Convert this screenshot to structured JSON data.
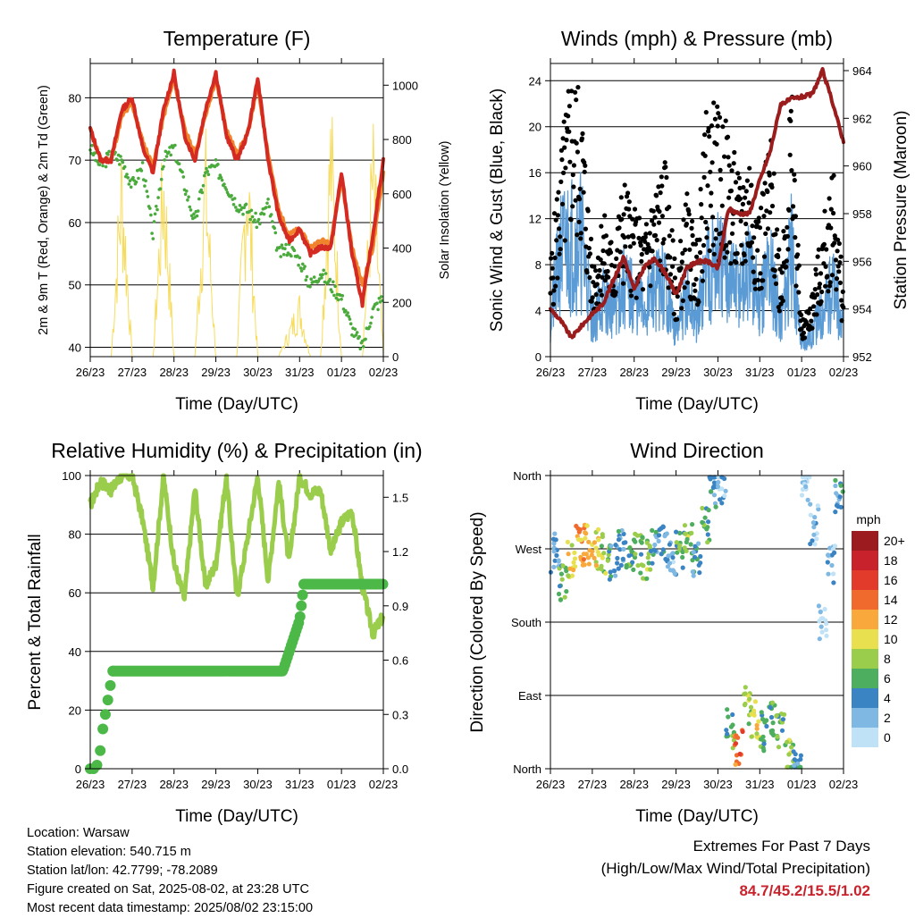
{
  "x_ticks": [
    "26/23",
    "27/23",
    "28/23",
    "29/23",
    "30/23",
    "31/23",
    "01/23",
    "02/23"
  ],
  "xlabel": "Time (Day/UTC)",
  "colors": {
    "red": "#d42a21",
    "orange": "#f0842c",
    "green": "#4aaa3c",
    "yellow": "#f7dc5c",
    "black": "#000000",
    "blue": "#5b9bd5",
    "maroon": "#9b1c1c",
    "rh": "#9acd4c",
    "precip": "#4cb848"
  },
  "chart_data": [
    {
      "type": "line",
      "title": "Temperature (F)",
      "xlabel": "Time (Day/UTC)",
      "ylabel": "2m & 9m T (Red, Orange) & 2m Td (Green)",
      "y2label": "Solar Insolation (Yellow)",
      "ylim": [
        38.5,
        85.5
      ],
      "y_ticks": [
        40,
        50,
        60,
        70,
        80
      ],
      "y2lim": [
        0,
        1080
      ],
      "y2_ticks": [
        0,
        200,
        400,
        600,
        800,
        1000
      ],
      "x": [
        0,
        0.25,
        0.5,
        0.75,
        1,
        1.25,
        1.5,
        1.75,
        2,
        2.25,
        2.5,
        2.75,
        3,
        3.25,
        3.5,
        3.75,
        4,
        4.25,
        4.5,
        4.75,
        5,
        5.25,
        5.5,
        5.75,
        6,
        6.25,
        6.5,
        6.75,
        7
      ],
      "series": [
        {
          "name": "2m T",
          "color": "red",
          "values": [
            75,
            70,
            70,
            78,
            80,
            72,
            68,
            78,
            84,
            74,
            70,
            78,
            84,
            74,
            70,
            74,
            83,
            70,
            61,
            57,
            59,
            55,
            56,
            56,
            68,
            55,
            47,
            58,
            70
          ]
        },
        {
          "name": "9m T",
          "color": "orange",
          "values": [
            75,
            70,
            70,
            77,
            79,
            73,
            69,
            77,
            83,
            75,
            71,
            77,
            83,
            75,
            71,
            74,
            82,
            71,
            62,
            58,
            59,
            56,
            57,
            57,
            67,
            56,
            50,
            56,
            68
          ]
        },
        {
          "name": "2m Td",
          "color": "green",
          "values": [
            72,
            69,
            71,
            70,
            66,
            69,
            58,
            70,
            72,
            66,
            60,
            68,
            69,
            66,
            63,
            62,
            60,
            63,
            55,
            56,
            54,
            50,
            52,
            50,
            48,
            43,
            40,
            46,
            48
          ]
        },
        {
          "name": "Solar Insolation",
          "color": "yellow",
          "axis": "y2",
          "values": [
            0,
            0,
            0,
            880,
            0,
            0,
            0,
            900,
            0,
            0,
            0,
            900,
            0,
            0,
            0,
            950,
            0,
            0,
            0,
            120,
            250,
            0,
            0,
            1050,
            0,
            0,
            0,
            950,
            0
          ]
        }
      ]
    },
    {
      "type": "scatter",
      "title": "Winds (mph) & Pressure (mb)",
      "xlabel": "Time (Day/UTC)",
      "ylabel": "Sonic Wind & Gust (Blue, Black)",
      "y2label": "Station Pressure (Maroon)",
      "ylim": [
        0,
        25.5
      ],
      "y_ticks": [
        0,
        4,
        8,
        12,
        16,
        20,
        24
      ],
      "y2lim": [
        952,
        964.3
      ],
      "y2_ticks": [
        952,
        954,
        956,
        958,
        960,
        962,
        964
      ],
      "x": [
        0,
        0.25,
        0.5,
        0.75,
        1,
        1.25,
        1.5,
        1.75,
        2,
        2.25,
        2.5,
        2.75,
        3,
        3.25,
        3.5,
        3.75,
        4,
        4.25,
        4.5,
        4.75,
        5,
        5.25,
        5.5,
        5.75,
        6,
        6.25,
        6.5,
        6.75,
        7
      ],
      "series": [
        {
          "name": "Gust",
          "color": "black",
          "values": [
            6,
            13,
            18,
            16,
            6,
            9,
            7,
            11,
            9,
            8,
            11,
            12,
            5,
            10,
            7,
            16,
            15,
            14,
            11,
            13,
            9,
            14,
            6,
            17,
            2,
            4,
            8,
            12,
            4
          ]
        },
        {
          "name": "Wind",
          "color": "blue",
          "values": [
            3,
            9,
            10,
            10,
            3,
            5,
            4,
            6,
            5,
            4,
            6,
            6,
            2,
            5,
            3,
            8,
            8,
            7,
            6,
            7,
            5,
            8,
            3,
            9,
            1,
            2,
            4,
            6,
            2
          ]
        },
        {
          "name": "Station Pressure",
          "color": "maroon",
          "axis": "y2",
          "values": [
            954,
            953.5,
            952.8,
            953.3,
            953.8,
            954.2,
            955.2,
            956.2,
            954.8,
            955.8,
            956.1,
            955.5,
            954.6,
            955.7,
            956,
            956,
            955.7,
            958.2,
            958,
            958,
            959.4,
            960.6,
            962.6,
            962.8,
            962.9,
            963,
            964,
            962.6,
            961
          ]
        }
      ]
    },
    {
      "type": "line",
      "title": "Relative Humidity (%) & Precipitation (in)",
      "xlabel": "Time (Day/UTC)",
      "ylabel": "Percent & Total Rainfall",
      "ylim": [
        0,
        100
      ],
      "y_ticks": [
        0,
        20,
        40,
        60,
        80,
        100
      ],
      "y2lim": [
        0,
        1.62
      ],
      "y2_ticks": [
        0.0,
        0.3,
        0.6,
        0.9,
        1.2,
        1.5
      ],
      "x": [
        0,
        0.25,
        0.5,
        0.75,
        1,
        1.25,
        1.5,
        1.75,
        2,
        2.25,
        2.5,
        2.75,
        3,
        3.25,
        3.5,
        3.75,
        4,
        4.25,
        4.5,
        4.75,
        5,
        5.25,
        5.5,
        5.75,
        6,
        6.25,
        6.5,
        6.75,
        7
      ],
      "series": [
        {
          "name": "RH",
          "color": "rh",
          "values": [
            90,
            98,
            95,
            100,
            100,
            85,
            62,
            100,
            70,
            58,
            96,
            62,
            70,
            100,
            58,
            78,
            100,
            64,
            98,
            70,
            100,
            94,
            95,
            74,
            84,
            88,
            62,
            46,
            52
          ]
        },
        {
          "name": "Total Rainfall",
          "color": "precip",
          "axis": "y2",
          "values": [
            0,
            0,
            0.54,
            0.54,
            0.54,
            0.54,
            0.54,
            0.54,
            0.54,
            0.54,
            0.54,
            0.54,
            0.54,
            0.54,
            0.54,
            0.54,
            0.54,
            0.54,
            0.54,
            0.54,
            0.9,
            1.02,
            1.02,
            1.02,
            1.02,
            1.02,
            1.02,
            1.02,
            1.02
          ]
        }
      ]
    },
    {
      "type": "scatter",
      "title": "Wind Direction",
      "xlabel": "Time (Day/UTC)",
      "ylabel": "Direction (Colored By Speed)",
      "y_ticks": [
        "North",
        "East",
        "South",
        "West",
        "North"
      ],
      "ylim": [
        0,
        360
      ],
      "colorbar": {
        "label": "mph",
        "levels": [
          "20+",
          "18",
          "16",
          "14",
          "12",
          "10",
          "8",
          "6",
          "4",
          "2",
          "0"
        ],
        "colors": [
          "#9b1b1e",
          "#c8232c",
          "#e33b2b",
          "#f16a2d",
          "#f9a83b",
          "#e9e04f",
          "#9acd4c",
          "#4cae5e",
          "#3b84c4",
          "#7eb8e3",
          "#c0e2f6"
        ]
      },
      "x": [
        0.1,
        0.3,
        0.5,
        0.7,
        0.9,
        1.1,
        1.3,
        1.5,
        1.7,
        1.9,
        2.1,
        2.3,
        2.5,
        2.7,
        2.9,
        3.1,
        3.3,
        3.5,
        3.7,
        3.9,
        4.1,
        4.3,
        4.5,
        4.7,
        4.9,
        5.1,
        5.3,
        5.5,
        5.7,
        5.9,
        6.1,
        6.3,
        6.5,
        6.7,
        6.9
      ],
      "y": [
        265,
        230,
        260,
        275,
        275,
        270,
        265,
        250,
        270,
        260,
        265,
        255,
        270,
        275,
        260,
        270,
        280,
        255,
        300,
        340,
        350,
        50,
        30,
        75,
        60,
        45,
        60,
        50,
        20,
        10,
        355,
        300,
        180,
        250,
        330
      ],
      "speed": [
        3,
        6,
        10,
        12,
        12,
        10,
        8,
        4,
        4,
        6,
        6,
        8,
        4,
        4,
        2,
        6,
        8,
        4,
        6,
        4,
        2,
        6,
        14,
        8,
        10,
        6,
        6,
        6,
        8,
        4,
        1,
        2,
        1,
        2,
        4
      ]
    }
  ],
  "info": {
    "location": "Location: Warsaw",
    "elevation": "Station elevation: 540.715 m",
    "latlon": "Station lat/lon: 42.7799; -78.2089",
    "created": "Figure created on Sat, 2025-08-02, at 23:28 UTC",
    "recent": "Most recent data timestamp: 2025/08/02 23:15:00"
  },
  "extremes": {
    "title": "Extremes For Past 7 Days",
    "subtitle": "(High/Low/Max Wind/Total Precipitation)",
    "values": "84.7/45.2/15.5/1.02"
  }
}
